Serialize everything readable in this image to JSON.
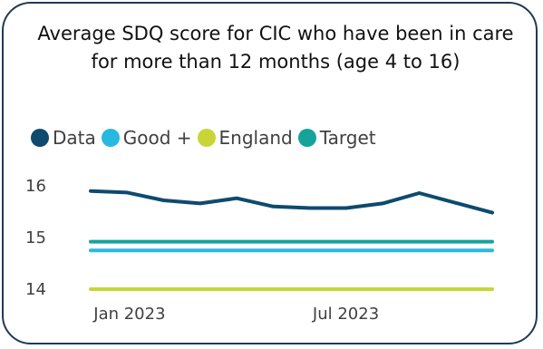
{
  "chart_data": {
    "type": "line",
    "title": "Average SDQ score for CIC who have been in care for more than 12 months (age 4 to 16)",
    "xlabel": "",
    "ylabel": "",
    "ylim": [
      14,
      16.2
    ],
    "yticks": [
      "16",
      "15",
      "14"
    ],
    "xticks": [
      "Jan 2023",
      "Jul 2023"
    ],
    "legend_position": "top-left",
    "grid": false,
    "x": [
      "2022-12",
      "2023-01",
      "2023-02",
      "2023-03",
      "2023-04",
      "2023-05",
      "2023-06",
      "2023-07",
      "2023-08",
      "2023-09",
      "2023-10",
      "2023-11"
    ],
    "series": [
      {
        "name": "Data",
        "color": "#0e4a6e",
        "values": [
          15.9,
          15.87,
          15.72,
          15.66,
          15.76,
          15.6,
          15.57,
          15.57,
          15.66,
          15.86,
          15.67,
          15.48
        ]
      },
      {
        "name": "Good +",
        "color": "#29b8e0",
        "values": [
          14.75,
          14.75,
          14.75,
          14.75,
          14.75,
          14.75,
          14.75,
          14.75,
          14.75,
          14.75,
          14.75,
          14.75
        ]
      },
      {
        "name": "England",
        "color": "#c7d636",
        "values": [
          14,
          14,
          14,
          14,
          14,
          14,
          14,
          14,
          14,
          14,
          14,
          14
        ]
      },
      {
        "name": "Target",
        "color": "#15a39a",
        "values": [
          14.92,
          14.92,
          14.92,
          14.92,
          14.92,
          14.92,
          14.92,
          14.92,
          14.92,
          14.92,
          14.92,
          14.92
        ]
      }
    ]
  }
}
